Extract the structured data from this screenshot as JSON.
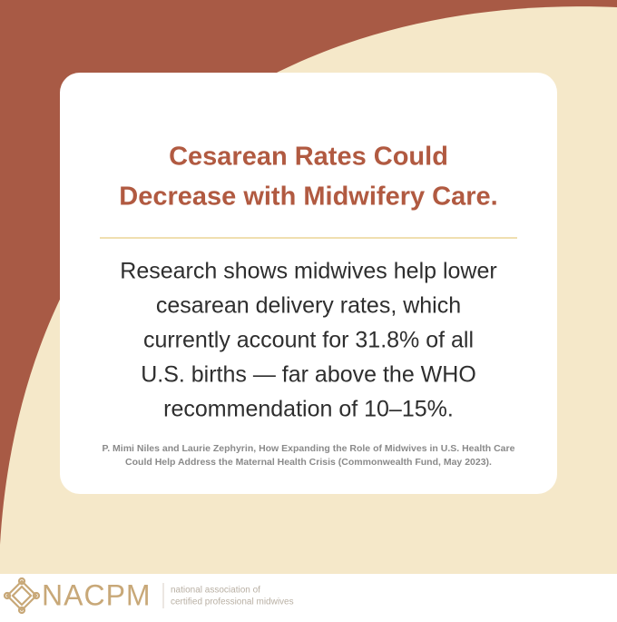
{
  "card": {
    "title": [
      "Cesarean Rates Could",
      "Decrease with Midwifery Care."
    ],
    "body": [
      "Research shows midwives help lower",
      "cesarean delivery rates, which",
      "currently account for 31.8% of all",
      "U.S. births — far above the WHO",
      "recommendation of 10–15%."
    ],
    "citation": [
      "P. Mimi Niles and Laurie Zephyrin, How Expanding the Role of Midwives in U.S. Health Care",
      "Could Help Address the Maternal Health Crisis (Commonwealth Fund, May 2023)."
    ]
  },
  "footer": {
    "brand": "NACPM",
    "tagline": [
      "national association of",
      "certified professional midwives"
    ]
  }
}
